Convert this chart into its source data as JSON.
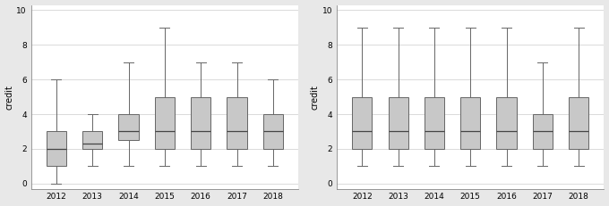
{
  "left": {
    "years": [
      "2012",
      "2013",
      "2014",
      "2015",
      "2016",
      "2017",
      "2018"
    ],
    "whislo": [
      0,
      1,
      1,
      1,
      1,
      1,
      1
    ],
    "q1": [
      1,
      2,
      2.5,
      2,
      2,
      2,
      2
    ],
    "med": [
      2,
      2.3,
      3,
      3,
      3,
      3,
      3
    ],
    "q3": [
      3,
      3,
      4,
      5,
      5,
      5,
      4
    ],
    "whishi": [
      6,
      4,
      7,
      9,
      7,
      7,
      6
    ],
    "ylabel": "credit",
    "ylim": [
      -0.3,
      10.3
    ],
    "yticks": [
      0,
      2,
      4,
      6,
      8,
      10
    ]
  },
  "right": {
    "years": [
      "2012",
      "2013",
      "2014",
      "2015",
      "2016",
      "2017",
      "2018"
    ],
    "whislo": [
      1,
      1,
      1,
      1,
      1,
      1,
      1
    ],
    "q1": [
      2,
      2,
      2,
      2,
      2,
      2,
      2
    ],
    "med": [
      3,
      3,
      3,
      3,
      3,
      3,
      3
    ],
    "q3": [
      5,
      5,
      5,
      5,
      5,
      4,
      5
    ],
    "whishi": [
      9,
      9,
      9,
      9,
      9,
      7,
      9
    ],
    "ylabel": "credit",
    "ylim": [
      -0.3,
      10.3
    ],
    "yticks": [
      0,
      2,
      4,
      6,
      8,
      10
    ]
  },
  "box_facecolor": "#c8c8c8",
  "box_edgecolor": "#666666",
  "median_color": "#444444",
  "whisker_color": "#666666",
  "cap_color": "#666666",
  "bg_color": "#e8e8e8",
  "plot_bg": "#ffffff",
  "grid_color": "#cccccc",
  "spine_color": "#888888",
  "tick_labelsize": 6.5,
  "ylabel_fontsize": 7,
  "linewidth": 0.7
}
